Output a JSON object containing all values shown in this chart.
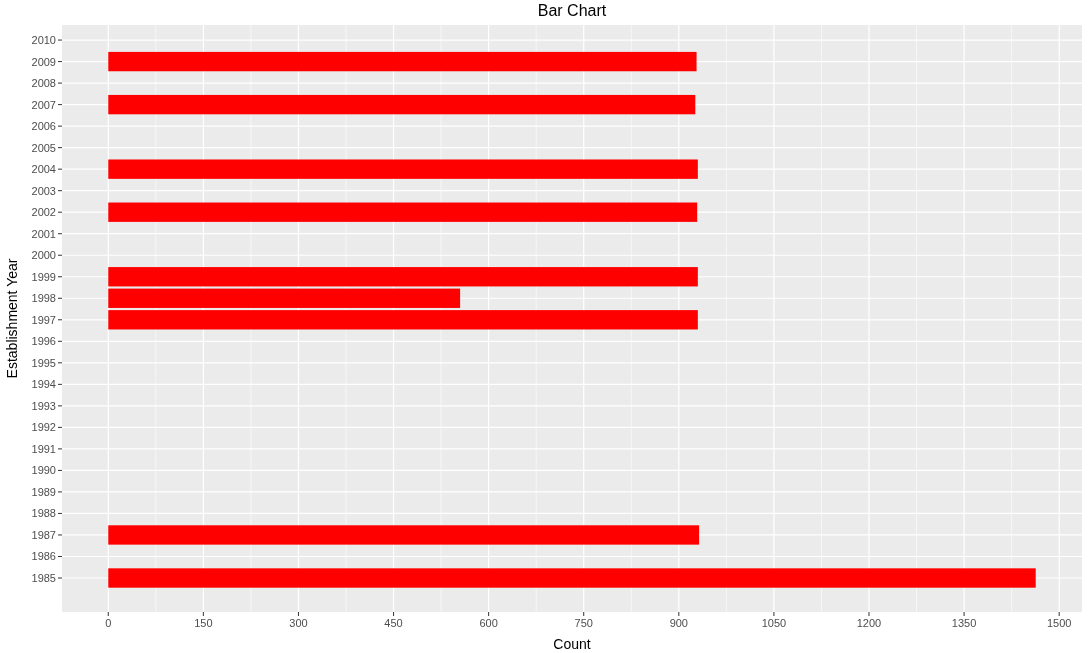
{
  "chart_data": {
    "type": "bar",
    "orientation": "horizontal",
    "title": "Bar Chart",
    "xlabel": "Count",
    "ylabel": "Establishment Year",
    "categories": [
      "2010",
      "2009",
      "2008",
      "2007",
      "2006",
      "2005",
      "2004",
      "2003",
      "2002",
      "2001",
      "2000",
      "1999",
      "1998",
      "1997",
      "1996",
      "1995",
      "1994",
      "1993",
      "1992",
      "1991",
      "1990",
      "1989",
      "1988",
      "1987",
      "1986",
      "1985"
    ],
    "values": [
      null,
      928,
      null,
      926,
      null,
      null,
      930,
      null,
      929,
      null,
      null,
      930,
      555,
      930,
      null,
      null,
      null,
      null,
      null,
      null,
      null,
      null,
      null,
      932,
      null,
      1463
    ],
    "color": "#ff0000",
    "xlim": [
      -73,
      1536
    ],
    "xticks": [
      0,
      150,
      300,
      450,
      600,
      750,
      900,
      1050,
      1200,
      1350,
      1500
    ],
    "grid": true
  }
}
